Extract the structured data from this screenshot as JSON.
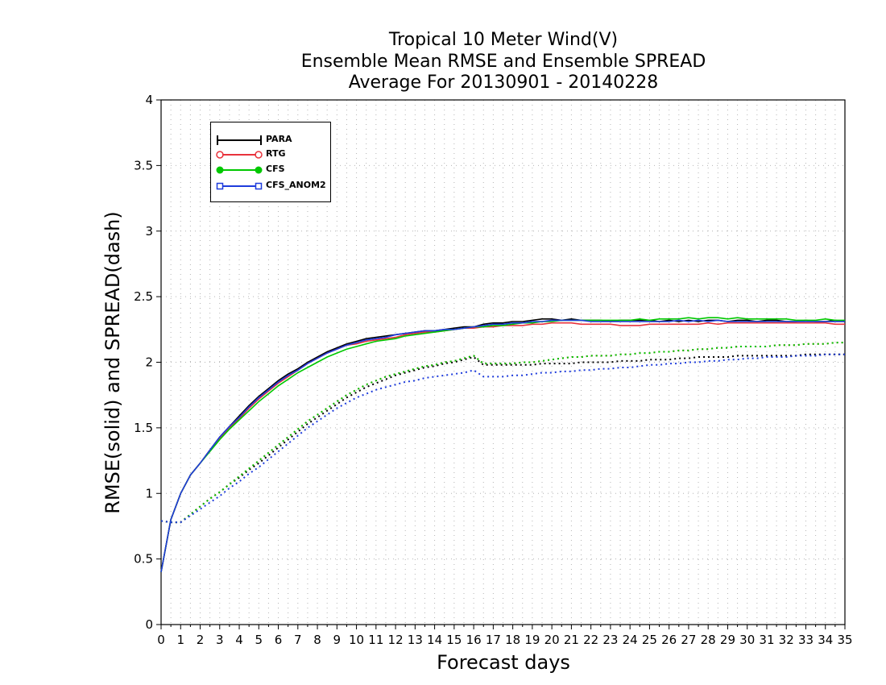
{
  "chart_data": {
    "type": "line",
    "title": [
      "Tropical 10 Meter Wind(V)",
      "Ensemble Mean RMSE and Ensemble SPREAD",
      "Average For 20130901 - 20140228"
    ],
    "xlabel": "Forecast days",
    "ylabel": "RMSE(solid) and SPREAD(dash)",
    "xlim": [
      0,
      35
    ],
    "ylim": [
      0,
      4
    ],
    "xticks": [
      0,
      1,
      2,
      3,
      4,
      5,
      6,
      7,
      8,
      9,
      10,
      11,
      12,
      13,
      14,
      15,
      16,
      17,
      18,
      19,
      20,
      21,
      22,
      23,
      24,
      25,
      26,
      27,
      28,
      29,
      30,
      31,
      32,
      33,
      34,
      35
    ],
    "yticks": [
      0,
      0.5,
      1,
      1.5,
      2,
      2.5,
      3,
      3.5,
      4
    ],
    "ytick_labels": [
      "0",
      "0.5",
      "1",
      "1.5",
      "2",
      "2.5",
      "3",
      "3.5",
      "4"
    ],
    "grid": true,
    "legend_position": "top-left",
    "x": [
      0,
      0.5,
      1,
      1.5,
      2,
      2.5,
      3,
      3.5,
      4,
      4.5,
      5,
      5.5,
      6,
      6.5,
      7,
      7.5,
      8,
      8.5,
      9,
      9.5,
      10,
      10.5,
      11,
      11.5,
      12,
      12.5,
      13,
      13.5,
      14,
      14.5,
      15,
      15.5,
      16,
      16.5,
      17,
      17.5,
      18,
      18.5,
      19,
      19.5,
      20,
      20.5,
      21,
      21.5,
      22,
      22.5,
      23,
      23.5,
      24,
      24.5,
      25,
      25.5,
      26,
      26.5,
      27,
      27.5,
      28,
      28.5,
      29,
      29.5,
      30,
      30.5,
      31,
      31.5,
      32,
      32.5,
      33,
      33.5,
      34,
      34.5,
      35
    ],
    "series": [
      {
        "name": "PARA",
        "color": "#000000",
        "marker": "plus",
        "rmse": [
          0.4,
          0.8,
          1.0,
          1.14,
          1.23,
          1.33,
          1.43,
          1.51,
          1.59,
          1.67,
          1.74,
          1.8,
          1.86,
          1.91,
          1.95,
          2.0,
          2.04,
          2.08,
          2.11,
          2.14,
          2.16,
          2.18,
          2.19,
          2.2,
          2.21,
          2.22,
          2.23,
          2.24,
          2.24,
          2.25,
          2.26,
          2.27,
          2.27,
          2.29,
          2.3,
          2.3,
          2.31,
          2.31,
          2.32,
          2.33,
          2.33,
          2.32,
          2.33,
          2.32,
          2.32,
          2.32,
          2.31,
          2.32,
          2.32,
          2.32,
          2.32,
          2.31,
          2.32,
          2.31,
          2.32,
          2.31,
          2.32,
          2.32,
          2.31,
          2.32,
          2.32,
          2.31,
          2.32,
          2.32,
          2.31,
          2.31,
          2.32,
          2.31,
          2.31,
          2.32,
          2.31
        ],
        "spread": [
          0.79,
          0.78,
          0.78,
          0.84,
          0.9,
          0.96,
          1.01,
          1.07,
          1.12,
          1.18,
          1.23,
          1.29,
          1.35,
          1.41,
          1.47,
          1.53,
          1.58,
          1.63,
          1.68,
          1.73,
          1.77,
          1.81,
          1.84,
          1.87,
          1.9,
          1.92,
          1.94,
          1.96,
          1.97,
          1.99,
          2.0,
          2.02,
          2.04,
          1.98,
          1.98,
          1.98,
          1.98,
          1.98,
          1.98,
          1.99,
          1.99,
          1.99,
          1.99,
          2.0,
          2.0,
          2.0,
          2.0,
          2.01,
          2.01,
          2.01,
          2.02,
          2.02,
          2.02,
          2.03,
          2.03,
          2.04,
          2.04,
          2.04,
          2.04,
          2.05,
          2.05,
          2.05,
          2.05,
          2.05,
          2.05,
          2.05,
          2.06,
          2.06,
          2.06,
          2.06,
          2.06
        ]
      },
      {
        "name": "RTG",
        "color": "#e8333c",
        "marker": "open-circle",
        "rmse": [
          0.4,
          0.8,
          1.0,
          1.14,
          1.23,
          1.33,
          1.42,
          1.5,
          1.57,
          1.65,
          1.72,
          1.78,
          1.84,
          1.89,
          1.94,
          1.99,
          2.03,
          2.07,
          2.1,
          2.13,
          2.14,
          2.16,
          2.17,
          2.18,
          2.19,
          2.21,
          2.22,
          2.23,
          2.23,
          2.24,
          2.25,
          2.26,
          2.26,
          2.27,
          2.27,
          2.28,
          2.28,
          2.28,
          2.29,
          2.29,
          2.3,
          2.3,
          2.3,
          2.29,
          2.29,
          2.29,
          2.29,
          2.28,
          2.28,
          2.28,
          2.29,
          2.29,
          2.29,
          2.29,
          2.29,
          2.29,
          2.3,
          2.29,
          2.3,
          2.3,
          2.3,
          2.3,
          2.3,
          2.3,
          2.3,
          2.3,
          2.3,
          2.3,
          2.3,
          2.29,
          2.29
        ],
        "spread": [
          0.79,
          0.78,
          0.78,
          0.84,
          0.9,
          0.96,
          1.01,
          1.07,
          1.13,
          1.19,
          1.25,
          1.31,
          1.37,
          1.43,
          1.49,
          1.55,
          1.6,
          1.65,
          1.7,
          1.75,
          1.79,
          1.83,
          1.86,
          1.89,
          1.91,
          1.93,
          1.95,
          1.97,
          1.98,
          2.0,
          2.01,
          2.03,
          2.05,
          1.99,
          1.99,
          1.99,
          1.99,
          2.0,
          2.0,
          2.01,
          2.02,
          2.03,
          2.04,
          2.04,
          2.05,
          2.05,
          2.05,
          2.06,
          2.06,
          2.07,
          2.07,
          2.08,
          2.08,
          2.09,
          2.09,
          2.1,
          2.1,
          2.11,
          2.11,
          2.12,
          2.12,
          2.12,
          2.12,
          2.13,
          2.13,
          2.13,
          2.14,
          2.14,
          2.14,
          2.15,
          2.15
        ]
      },
      {
        "name": "CFS",
        "color": "#00c800",
        "marker": "filled-circle",
        "rmse": [
          0.4,
          0.8,
          1.0,
          1.14,
          1.23,
          1.32,
          1.41,
          1.49,
          1.56,
          1.63,
          1.7,
          1.76,
          1.82,
          1.87,
          1.92,
          1.96,
          2.0,
          2.04,
          2.07,
          2.1,
          2.12,
          2.14,
          2.16,
          2.17,
          2.18,
          2.2,
          2.21,
          2.22,
          2.23,
          2.24,
          2.25,
          2.26,
          2.27,
          2.27,
          2.28,
          2.28,
          2.29,
          2.3,
          2.3,
          2.31,
          2.31,
          2.32,
          2.32,
          2.32,
          2.32,
          2.32,
          2.32,
          2.32,
          2.32,
          2.33,
          2.32,
          2.33,
          2.33,
          2.33,
          2.34,
          2.33,
          2.34,
          2.34,
          2.33,
          2.34,
          2.33,
          2.33,
          2.33,
          2.33,
          2.33,
          2.32,
          2.32,
          2.32,
          2.33,
          2.32,
          2.32
        ],
        "spread": [
          0.79,
          0.78,
          0.78,
          0.84,
          0.9,
          0.96,
          1.01,
          1.07,
          1.13,
          1.19,
          1.25,
          1.31,
          1.37,
          1.43,
          1.49,
          1.55,
          1.6,
          1.65,
          1.7,
          1.75,
          1.79,
          1.83,
          1.86,
          1.89,
          1.91,
          1.93,
          1.95,
          1.97,
          1.98,
          2.0,
          2.01,
          2.03,
          2.05,
          1.99,
          1.99,
          1.99,
          1.99,
          2.0,
          2.0,
          2.01,
          2.02,
          2.03,
          2.04,
          2.04,
          2.05,
          2.05,
          2.05,
          2.06,
          2.06,
          2.07,
          2.07,
          2.08,
          2.08,
          2.09,
          2.09,
          2.1,
          2.1,
          2.11,
          2.11,
          2.12,
          2.12,
          2.12,
          2.12,
          2.13,
          2.13,
          2.13,
          2.14,
          2.14,
          2.14,
          2.15,
          2.15
        ]
      },
      {
        "name": "CFS_ANOM2",
        "color": "#1e3cdc",
        "marker": "open-square",
        "rmse": [
          0.4,
          0.8,
          1.0,
          1.14,
          1.23,
          1.33,
          1.43,
          1.51,
          1.58,
          1.66,
          1.73,
          1.79,
          1.85,
          1.9,
          1.94,
          1.99,
          2.03,
          2.07,
          2.1,
          2.13,
          2.15,
          2.17,
          2.18,
          2.19,
          2.21,
          2.22,
          2.23,
          2.24,
          2.24,
          2.25,
          2.25,
          2.26,
          2.27,
          2.28,
          2.29,
          2.29,
          2.3,
          2.3,
          2.31,
          2.31,
          2.32,
          2.32,
          2.32,
          2.32,
          2.31,
          2.31,
          2.31,
          2.31,
          2.31,
          2.31,
          2.31,
          2.31,
          2.31,
          2.32,
          2.31,
          2.32,
          2.31,
          2.32,
          2.31,
          2.31,
          2.31,
          2.31,
          2.31,
          2.31,
          2.31,
          2.31,
          2.31,
          2.31,
          2.31,
          2.31,
          2.31
        ],
        "spread": [
          0.79,
          0.78,
          0.78,
          0.83,
          0.88,
          0.93,
          0.98,
          1.04,
          1.09,
          1.15,
          1.2,
          1.26,
          1.32,
          1.38,
          1.44,
          1.5,
          1.55,
          1.6,
          1.65,
          1.69,
          1.73,
          1.76,
          1.79,
          1.81,
          1.83,
          1.85,
          1.86,
          1.88,
          1.89,
          1.9,
          1.91,
          1.92,
          1.94,
          1.89,
          1.89,
          1.89,
          1.9,
          1.9,
          1.91,
          1.92,
          1.92,
          1.93,
          1.93,
          1.94,
          1.94,
          1.95,
          1.95,
          1.96,
          1.96,
          1.97,
          1.98,
          1.98,
          1.99,
          1.99,
          2.0,
          2.0,
          2.01,
          2.01,
          2.02,
          2.02,
          2.03,
          2.03,
          2.04,
          2.04,
          2.04,
          2.05,
          2.05,
          2.05,
          2.06,
          2.06,
          2.06
        ]
      }
    ]
  }
}
